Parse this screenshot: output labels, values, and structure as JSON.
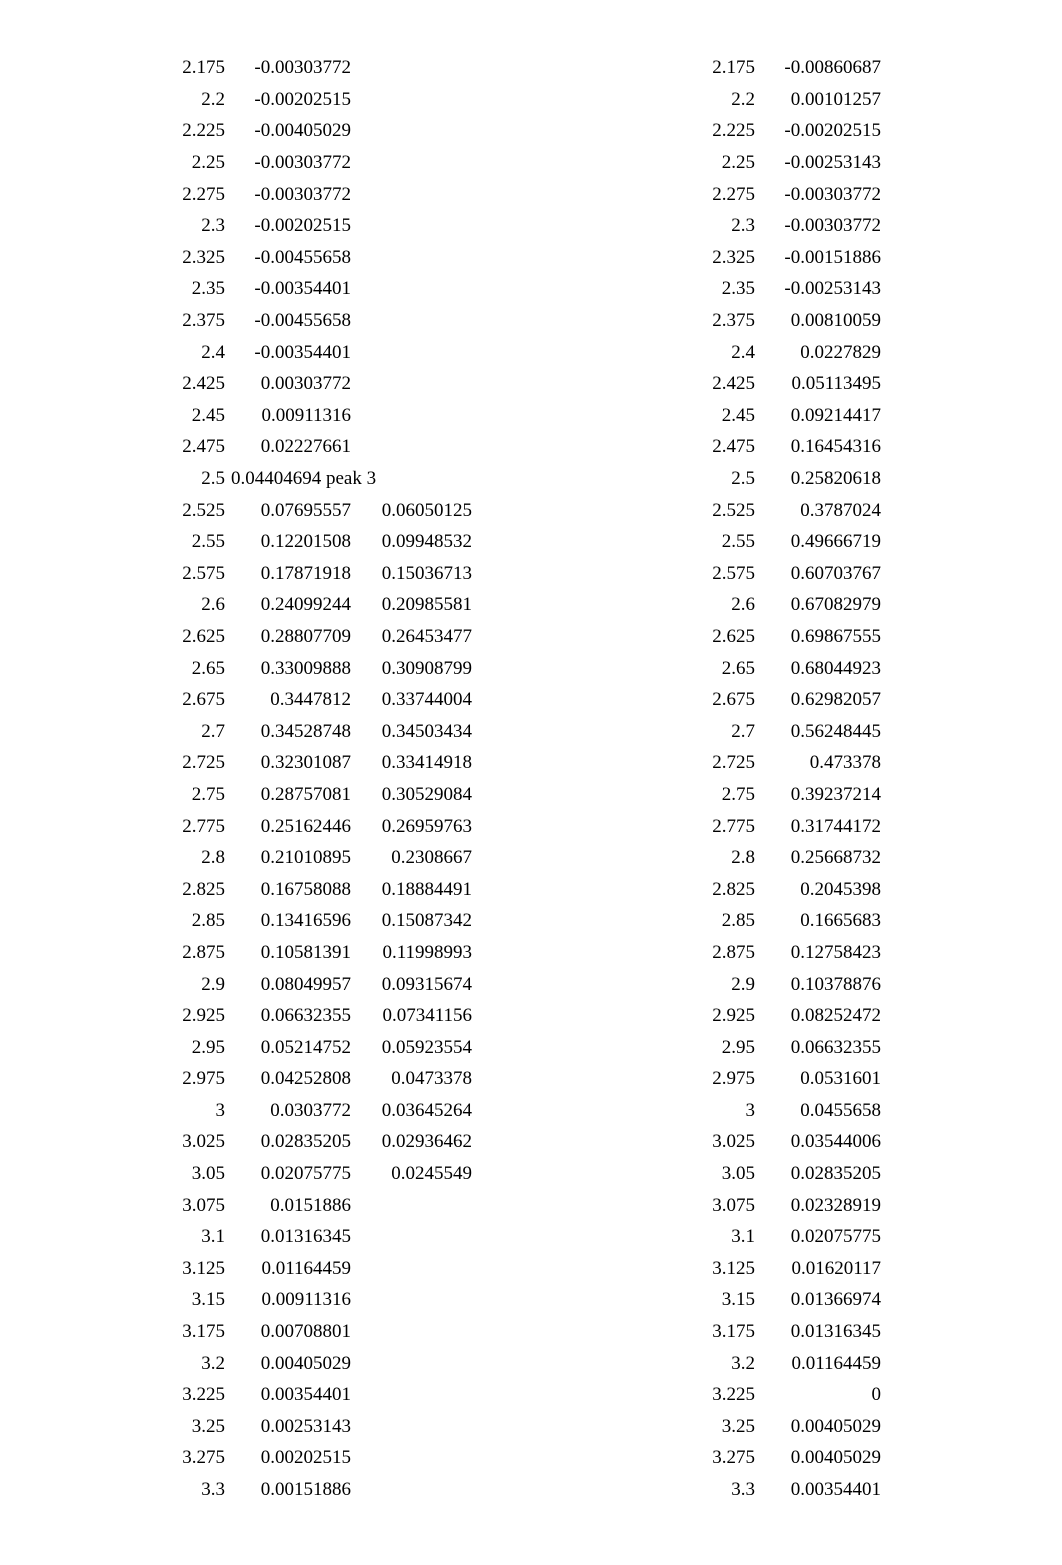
{
  "page": {
    "background": "#ffffff",
    "text_color": "#000000",
    "font_family": "Liberation Serif / Times New Roman",
    "font_size_pt": 14
  },
  "left": [
    {
      "a": "2.175",
      "b": "-0.00303772",
      "c": ""
    },
    {
      "a": "2.2",
      "b": "-0.00202515",
      "c": ""
    },
    {
      "a": "2.225",
      "b": "-0.00405029",
      "c": ""
    },
    {
      "a": "2.25",
      "b": "-0.00303772",
      "c": ""
    },
    {
      "a": "2.275",
      "b": "-0.00303772",
      "c": ""
    },
    {
      "a": "2.3",
      "b": "-0.00202515",
      "c": ""
    },
    {
      "a": "2.325",
      "b": "-0.00455658",
      "c": ""
    },
    {
      "a": "2.35",
      "b": "-0.00354401",
      "c": ""
    },
    {
      "a": "2.375",
      "b": "-0.00455658",
      "c": ""
    },
    {
      "a": "2.4",
      "b": "-0.00354401",
      "c": ""
    },
    {
      "a": "2.425",
      "b": "0.00303772",
      "c": ""
    },
    {
      "a": "2.45",
      "b": "0.00911316",
      "c": ""
    },
    {
      "a": "2.475",
      "b": "0.02227661",
      "c": ""
    },
    {
      "a": "2.5",
      "b": "0.04404694 peak 3",
      "c": ""
    },
    {
      "a": "2.525",
      "b": "0.07695557",
      "c": "0.06050125"
    },
    {
      "a": "2.55",
      "b": "0.12201508",
      "c": "0.09948532"
    },
    {
      "a": "2.575",
      "b": "0.17871918",
      "c": "0.15036713"
    },
    {
      "a": "2.6",
      "b": "0.24099244",
      "c": "0.20985581"
    },
    {
      "a": "2.625",
      "b": "0.28807709",
      "c": "0.26453477"
    },
    {
      "a": "2.65",
      "b": "0.33009888",
      "c": "0.30908799"
    },
    {
      "a": "2.675",
      "b": "0.3447812",
      "c": "0.33744004"
    },
    {
      "a": "2.7",
      "b": "0.34528748",
      "c": "0.34503434"
    },
    {
      "a": "2.725",
      "b": "0.32301087",
      "c": "0.33414918"
    },
    {
      "a": "2.75",
      "b": "0.28757081",
      "c": "0.30529084"
    },
    {
      "a": "2.775",
      "b": "0.25162446",
      "c": "0.26959763"
    },
    {
      "a": "2.8",
      "b": "0.21010895",
      "c": "0.2308667"
    },
    {
      "a": "2.825",
      "b": "0.16758088",
      "c": "0.18884491"
    },
    {
      "a": "2.85",
      "b": "0.13416596",
      "c": "0.15087342"
    },
    {
      "a": "2.875",
      "b": "0.10581391",
      "c": "0.11998993"
    },
    {
      "a": "2.9",
      "b": "0.08049957",
      "c": "0.09315674"
    },
    {
      "a": "2.925",
      "b": "0.06632355",
      "c": "0.07341156"
    },
    {
      "a": "2.95",
      "b": "0.05214752",
      "c": "0.05923554"
    },
    {
      "a": "2.975",
      "b": "0.04252808",
      "c": "0.0473378"
    },
    {
      "a": "3",
      "b": "0.0303772",
      "c": "0.03645264"
    },
    {
      "a": "3.025",
      "b": "0.02835205",
      "c": "0.02936462"
    },
    {
      "a": "3.05",
      "b": "0.02075775",
      "c": "0.0245549"
    },
    {
      "a": "3.075",
      "b": "0.0151886",
      "c": ""
    },
    {
      "a": "3.1",
      "b": "0.01316345",
      "c": ""
    },
    {
      "a": "3.125",
      "b": "0.01164459",
      "c": ""
    },
    {
      "a": "3.15",
      "b": "0.00911316",
      "c": ""
    },
    {
      "a": "3.175",
      "b": "0.00708801",
      "c": ""
    },
    {
      "a": "3.2",
      "b": "0.00405029",
      "c": ""
    },
    {
      "a": "3.225",
      "b": "0.00354401",
      "c": ""
    },
    {
      "a": "3.25",
      "b": "0.00253143",
      "c": ""
    },
    {
      "a": "3.275",
      "b": "0.00202515",
      "c": ""
    },
    {
      "a": "3.3",
      "b": "0.00151886",
      "c": ""
    }
  ],
  "right": [
    {
      "a": "2.175",
      "b": "-0.00860687"
    },
    {
      "a": "2.2",
      "b": "0.00101257"
    },
    {
      "a": "2.225",
      "b": "-0.00202515"
    },
    {
      "a": "2.25",
      "b": "-0.00253143"
    },
    {
      "a": "2.275",
      "b": "-0.00303772"
    },
    {
      "a": "2.3",
      "b": "-0.00303772"
    },
    {
      "a": "2.325",
      "b": "-0.00151886"
    },
    {
      "a": "2.35",
      "b": "-0.00253143"
    },
    {
      "a": "2.375",
      "b": "0.00810059"
    },
    {
      "a": "2.4",
      "b": "0.0227829"
    },
    {
      "a": "2.425",
      "b": "0.05113495"
    },
    {
      "a": "2.45",
      "b": "0.09214417"
    },
    {
      "a": "2.475",
      "b": "0.16454316"
    },
    {
      "a": "2.5",
      "b": "0.25820618"
    },
    {
      "a": "2.525",
      "b": "0.3787024"
    },
    {
      "a": "2.55",
      "b": "0.49666719"
    },
    {
      "a": "2.575",
      "b": "0.60703767"
    },
    {
      "a": "2.6",
      "b": "0.67082979"
    },
    {
      "a": "2.625",
      "b": "0.69867555"
    },
    {
      "a": "2.65",
      "b": "0.68044923"
    },
    {
      "a": "2.675",
      "b": "0.62982057"
    },
    {
      "a": "2.7",
      "b": "0.56248445"
    },
    {
      "a": "2.725",
      "b": "0.473378"
    },
    {
      "a": "2.75",
      "b": "0.39237214"
    },
    {
      "a": "2.775",
      "b": "0.31744172"
    },
    {
      "a": "2.8",
      "b": "0.25668732"
    },
    {
      "a": "2.825",
      "b": "0.2045398"
    },
    {
      "a": "2.85",
      "b": "0.1665683"
    },
    {
      "a": "2.875",
      "b": "0.12758423"
    },
    {
      "a": "2.9",
      "b": "0.10378876"
    },
    {
      "a": "2.925",
      "b": "0.08252472"
    },
    {
      "a": "2.95",
      "b": "0.06632355"
    },
    {
      "a": "2.975",
      "b": "0.0531601"
    },
    {
      "a": "3",
      "b": "0.0455658"
    },
    {
      "a": "3.025",
      "b": "0.03544006"
    },
    {
      "a": "3.05",
      "b": "0.02835205"
    },
    {
      "a": "3.075",
      "b": "0.02328919"
    },
    {
      "a": "3.1",
      "b": "0.02075775"
    },
    {
      "a": "3.125",
      "b": "0.01620117"
    },
    {
      "a": "3.15",
      "b": "0.01366974"
    },
    {
      "a": "3.175",
      "b": "0.01316345"
    },
    {
      "a": "3.2",
      "b": "0.01164459"
    },
    {
      "a": "3.225",
      "b": "0"
    },
    {
      "a": "3.25",
      "b": "0.00405029"
    },
    {
      "a": "3.275",
      "b": "0.00405029"
    },
    {
      "a": "3.3",
      "b": "0.00354401"
    }
  ]
}
